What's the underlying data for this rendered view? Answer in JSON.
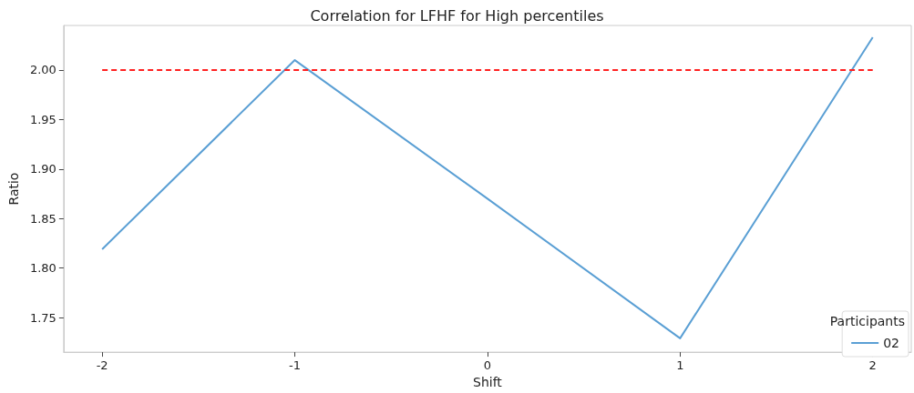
{
  "chart_data": {
    "type": "line",
    "title": "Correlation for LFHF for High percentiles",
    "xlabel": "Shift",
    "ylabel": "Ratio",
    "legend_title": "Participants",
    "series": [
      {
        "name": "02",
        "color": "#5a9fd4",
        "x": [
          -2,
          -1,
          0,
          1,
          2
        ],
        "values": [
          1.819,
          2.01,
          1.87,
          1.729,
          2.033
        ]
      },
      {
        "type": "line",
        "color": "#ff2020",
        "line_style": "dashed",
        "x": [
          -2,
          2
        ],
        "values": [
          2.0,
          2.0
        ]
      }
    ],
    "xlim": [
      -2.2,
      2.2
    ],
    "xticks": [
      -2,
      -1,
      0,
      1,
      2
    ],
    "ylim": [
      1.715,
      2.045
    ],
    "yticks": [
      {
        "value": 1.75,
        "label": "1.75"
      },
      {
        "value": 1.8,
        "label": "1.80"
      },
      {
        "value": 1.85,
        "label": "1.85"
      },
      {
        "value": 1.9,
        "label": "1.90"
      },
      {
        "value": 1.95,
        "label": "1.95"
      },
      {
        "value": 2.0,
        "label": "2.00"
      }
    ],
    "legend": "bottom right",
    "grid": false,
    "marker": "none",
    "line_style": "solid"
  }
}
